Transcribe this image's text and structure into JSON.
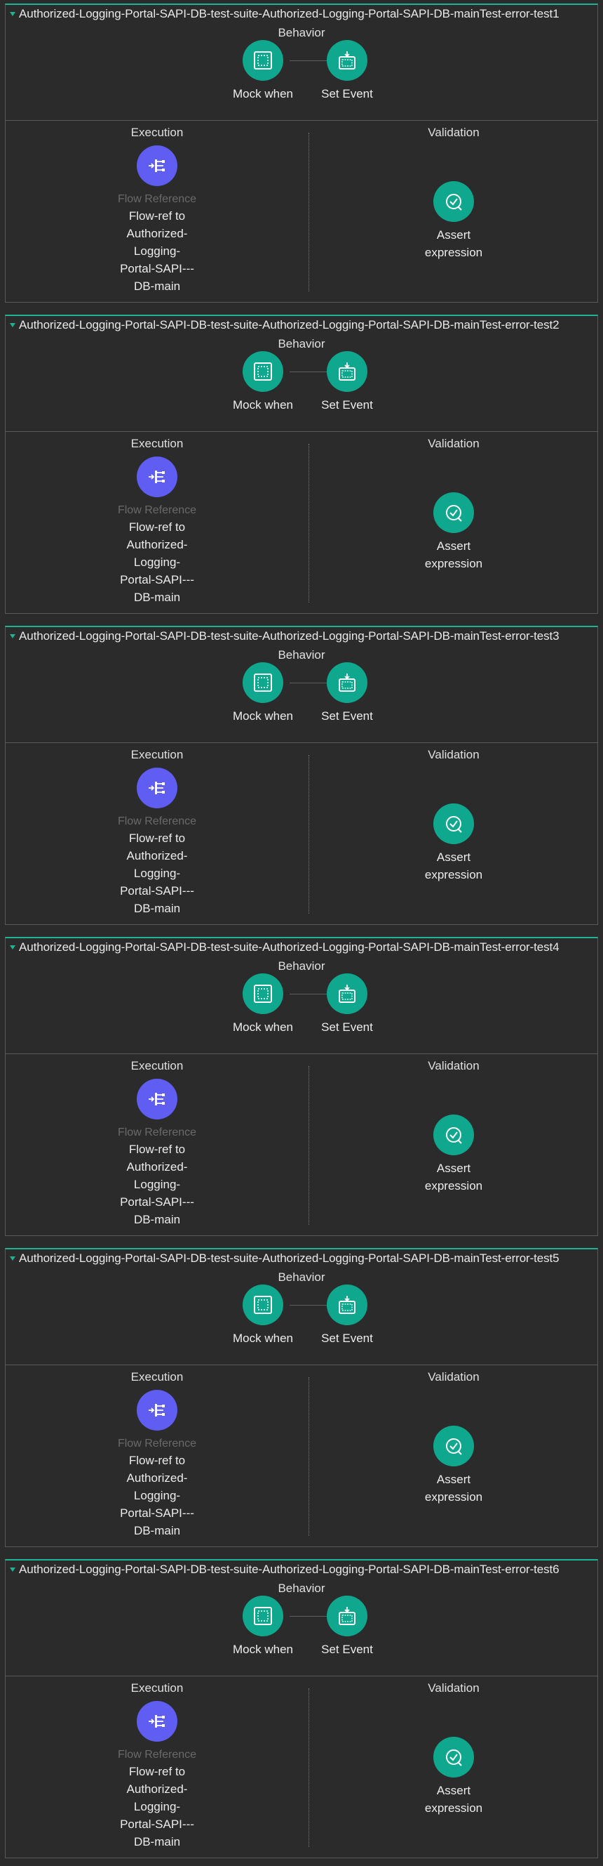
{
  "sections": {
    "behavior": "Behavior",
    "execution": "Execution",
    "validation": "Validation"
  },
  "processors": {
    "mock_when": "Mock when",
    "set_event": "Set Event",
    "flow_reference_type": "Flow Reference",
    "flow_reference_name_lines": [
      "Flow-ref to",
      "Authorized-",
      "Logging-",
      "Portal-SAPI---",
      "DB-main"
    ],
    "assert_lines": [
      "Assert",
      "expression"
    ]
  },
  "icons": {
    "mock_when": "mock-when-icon",
    "set_event": "set-event-icon",
    "flow_reference": "flow-reference-icon",
    "assert_expression": "assert-expression-icon",
    "toggle": "collapse-triangle-icon"
  },
  "colors": {
    "accent_teal": "#0fa88e",
    "flow_ref_purple": "#5f5df2",
    "suite_border_top": "#1fb392",
    "background": "#2b2b2b"
  },
  "tests": [
    {
      "title": "Authorized-Logging-Portal-SAPI-DB-test-suite-Authorized-Logging-Portal-SAPI-DB-mainTest-error-test1"
    },
    {
      "title": "Authorized-Logging-Portal-SAPI-DB-test-suite-Authorized-Logging-Portal-SAPI-DB-mainTest-error-test2"
    },
    {
      "title": "Authorized-Logging-Portal-SAPI-DB-test-suite-Authorized-Logging-Portal-SAPI-DB-mainTest-error-test3"
    },
    {
      "title": "Authorized-Logging-Portal-SAPI-DB-test-suite-Authorized-Logging-Portal-SAPI-DB-mainTest-error-test4"
    },
    {
      "title": "Authorized-Logging-Portal-SAPI-DB-test-suite-Authorized-Logging-Portal-SAPI-DB-mainTest-error-test5"
    },
    {
      "title": "Authorized-Logging-Portal-SAPI-DB-test-suite-Authorized-Logging-Portal-SAPI-DB-mainTest-error-test6"
    }
  ]
}
